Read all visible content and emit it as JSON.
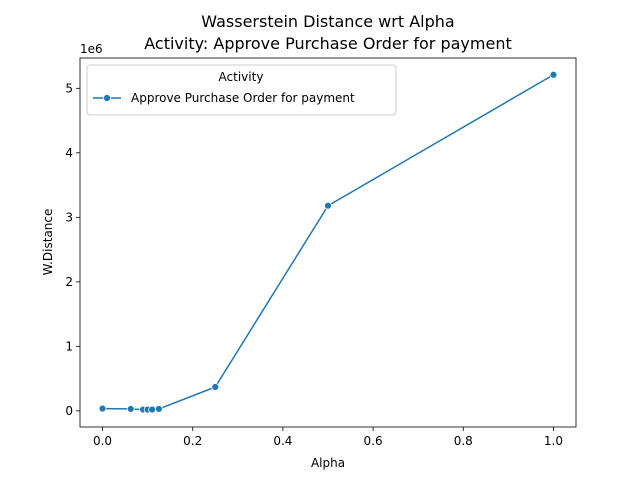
{
  "chart_data": {
    "type": "line",
    "title_line1": "Wasserstein Distance wrt Alpha",
    "title_line2": "Activity: Approve Purchase Order for payment",
    "xlabel": "Alpha",
    "ylabel": "W.Distance",
    "y_offset_label": "1e6",
    "xlim": [
      -0.05,
      1.05
    ],
    "ylim": [
      -0.25,
      5.47
    ],
    "x_ticks": [
      0.0,
      0.2,
      0.4,
      0.6,
      0.8,
      1.0
    ],
    "x_tick_labels": [
      "0.0",
      "0.2",
      "0.4",
      "0.6",
      "0.8",
      "1.0"
    ],
    "y_ticks": [
      0,
      1,
      2,
      3,
      4,
      5
    ],
    "y_tick_labels": [
      "0",
      "1",
      "2",
      "3",
      "4",
      "5"
    ],
    "grid": false,
    "legend": {
      "title": "Activity",
      "placement": "top-left"
    },
    "series": [
      {
        "name": "Approve Purchase Order for payment",
        "color": "#1f77b4",
        "marker": "circle",
        "x": [
          0.0,
          0.0625,
          0.09,
          0.1,
          0.11,
          0.125,
          0.25,
          0.5,
          1.0
        ],
        "y": [
          0.035,
          0.03,
          0.02,
          0.02,
          0.02,
          0.03,
          0.37,
          3.18,
          5.21
        ]
      }
    ]
  }
}
